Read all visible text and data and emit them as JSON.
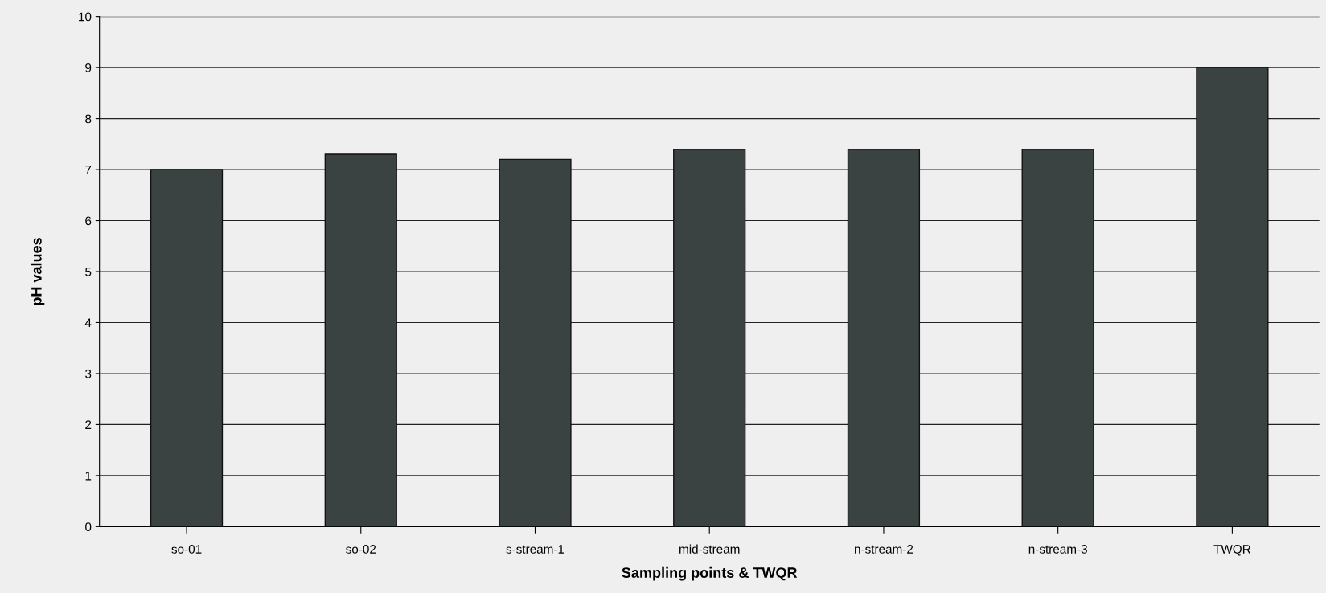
{
  "chart_data": {
    "type": "bar",
    "xlabel": "Sampling points & TWQR",
    "ylabel": "pH values",
    "categories": [
      "so-01",
      "so-02",
      "s-stream-1",
      "mid-stream",
      "n-stream-2",
      "n-stream-3",
      "TWQR"
    ],
    "values": [
      7.0,
      7.3,
      7.2,
      7.4,
      7.4,
      7.4,
      9.0
    ],
    "color": "#3b4242",
    "ylim": [
      0,
      10
    ],
    "yticks": [
      0,
      1,
      2,
      3,
      4,
      5,
      6,
      7,
      8,
      9,
      10
    ],
    "grid": "y"
  }
}
